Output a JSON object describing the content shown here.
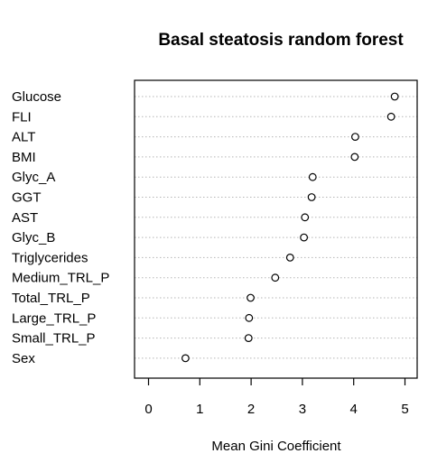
{
  "chart_data": {
    "type": "scatter",
    "title": "Basal steatosis random forest",
    "xlabel": "Mean Gini Coefficient",
    "ylabel": "",
    "xlim": [
      -0.1,
      5.1
    ],
    "xticks": [
      "0",
      "1",
      "2",
      "3",
      "4",
      "5"
    ],
    "grid": "horizontal dotted lines at each category",
    "categories": [
      "Glucose",
      "FLI",
      "ALT",
      "BMI",
      "Glyc_A",
      "GGT",
      "AST",
      "Glyc_B",
      "Triglycerides",
      "Medium_TRL_P",
      "Total_TRL_P",
      "Large_TRL_P",
      "Small_TRL_P",
      "Sex"
    ],
    "values": [
      4.8,
      4.73,
      4.03,
      4.02,
      3.2,
      3.18,
      3.05,
      3.03,
      2.76,
      2.47,
      1.99,
      1.96,
      1.95,
      0.72
    ]
  }
}
